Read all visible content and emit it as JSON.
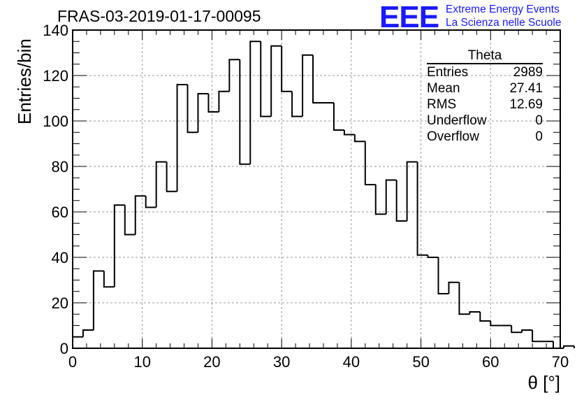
{
  "title": "FRAS-03-2019-01-17-00095",
  "logo": {
    "mark": "EEE",
    "line1": "Extreme Energy Events",
    "line2": "La Scienza nelle Scuole"
  },
  "stats_box": {
    "header": "Theta",
    "rows": [
      {
        "label": "Entries",
        "value": "2989"
      },
      {
        "label": "Mean",
        "value": "27.41"
      },
      {
        "label": "RMS",
        "value": "12.69"
      },
      {
        "label": "Underflow",
        "value": "0"
      },
      {
        "label": "Overflow",
        "value": "0"
      }
    ]
  },
  "chart_data": {
    "type": "histogram",
    "title": "FRAS-03-2019-01-17-00095",
    "xlabel": "θ [°]",
    "ylabel": "Entries/bin",
    "xlim": [
      0,
      70
    ],
    "ylim": [
      0,
      140
    ],
    "grid": true,
    "bin_width": 1.5,
    "bin_start": 0,
    "values": [
      5,
      8,
      34,
      27,
      63,
      50,
      67,
      62,
      82,
      69,
      116,
      95,
      112,
      104,
      113,
      127,
      81,
      135,
      102,
      133,
      113,
      102,
      129,
      108,
      108,
      96,
      94,
      91,
      72,
      59,
      74,
      56,
      82,
      41,
      40,
      24,
      29,
      15,
      16,
      12,
      10,
      10,
      7,
      8,
      3,
      3,
      0,
      1
    ],
    "xticks": [
      0,
      10,
      20,
      30,
      40,
      50,
      60,
      70
    ],
    "yticks": [
      0,
      20,
      40,
      60,
      80,
      100,
      120,
      140
    ]
  }
}
